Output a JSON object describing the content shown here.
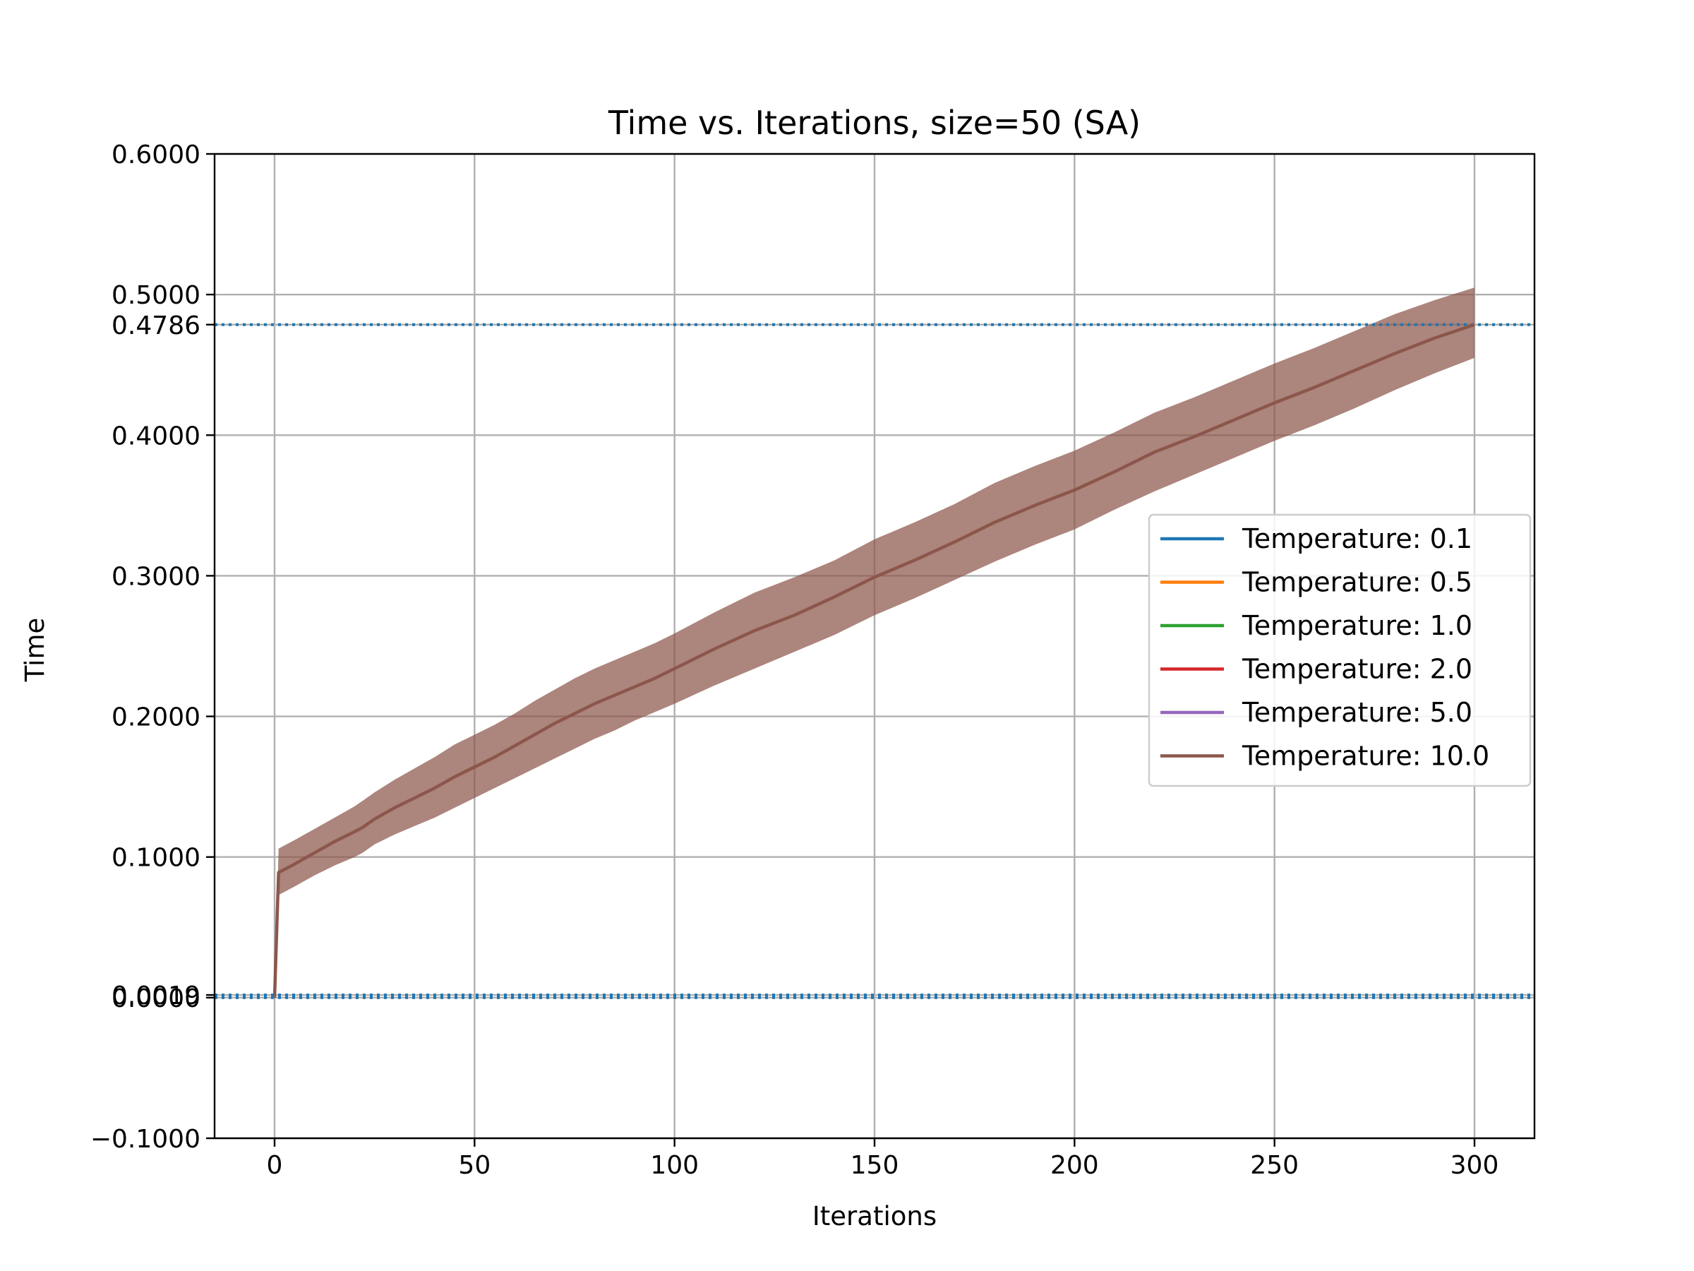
{
  "chart_data": {
    "type": "line",
    "title": "Time vs. Iterations, size=50 (SA)",
    "xlabel": "Iterations",
    "ylabel": "Time",
    "xlim": [
      -15,
      315
    ],
    "ylim": [
      -0.1,
      0.6
    ],
    "x_ticks": [
      0,
      50,
      100,
      150,
      200,
      250,
      300
    ],
    "x_tick_labels": [
      "0",
      "50",
      "100",
      "150",
      "200",
      "250",
      "300"
    ],
    "y_ticks": [
      -0.1,
      0.0,
      0.0019,
      0.1,
      0.2,
      0.3,
      0.4,
      0.4786,
      0.5,
      0.6
    ],
    "y_tick_labels": [
      "−0.1000",
      "0.0000",
      "0.0019",
      "0.1000",
      "0.2000",
      "0.3000",
      "0.4000",
      "0.4786",
      "0.5000",
      "0.6000"
    ],
    "grid": true,
    "legend_position": "center-right",
    "reference_lines": [
      {
        "y": 0.4786,
        "style": "dotted",
        "color": "#1f77b4"
      },
      {
        "y": 0.0019,
        "style": "dotted",
        "color": "#1f77b4"
      },
      {
        "y": 0.0,
        "style": "dotted",
        "color": "#1f77b4"
      }
    ],
    "series": [
      {
        "name": "Temperature: 0.1",
        "color": "#1f77b4"
      },
      {
        "name": "Temperature: 0.5",
        "color": "#ff7f0e"
      },
      {
        "name": "Temperature: 1.0",
        "color": "#2ca02c"
      },
      {
        "name": "Temperature: 2.0",
        "color": "#d62728"
      },
      {
        "name": "Temperature: 5.0",
        "color": "#9467bd"
      },
      {
        "name": "Temperature: 10.0",
        "color": "#8c564b",
        "x": [
          0,
          1,
          5,
          10,
          15,
          20,
          22,
          25,
          30,
          35,
          40,
          45,
          50,
          55,
          60,
          65,
          70,
          75,
          80,
          85,
          90,
          95,
          100,
          110,
          120,
          130,
          140,
          150,
          160,
          170,
          180,
          190,
          200,
          210,
          220,
          230,
          240,
          250,
          260,
          270,
          280,
          290,
          300
        ],
        "values": [
          0.0,
          0.089,
          0.095,
          0.103,
          0.111,
          0.118,
          0.121,
          0.127,
          0.135,
          0.142,
          0.149,
          0.157,
          0.164,
          0.171,
          0.179,
          0.187,
          0.195,
          0.202,
          0.209,
          0.215,
          0.221,
          0.227,
          0.234,
          0.248,
          0.261,
          0.272,
          0.285,
          0.299,
          0.311,
          0.324,
          0.338,
          0.35,
          0.361,
          0.374,
          0.388,
          0.399,
          0.411,
          0.423,
          0.434,
          0.446,
          0.458,
          0.469,
          0.4786
        ],
        "band_lower": [
          0.0,
          0.073,
          0.079,
          0.087,
          0.094,
          0.1,
          0.103,
          0.109,
          0.116,
          0.122,
          0.128,
          0.135,
          0.142,
          0.149,
          0.156,
          0.163,
          0.17,
          0.177,
          0.184,
          0.19,
          0.197,
          0.203,
          0.209,
          0.222,
          0.234,
          0.246,
          0.258,
          0.272,
          0.284,
          0.297,
          0.31,
          0.322,
          0.333,
          0.347,
          0.36,
          0.372,
          0.384,
          0.396,
          0.407,
          0.419,
          0.432,
          0.444,
          0.455
        ],
        "band_upper": [
          0.0,
          0.106,
          0.112,
          0.12,
          0.128,
          0.136,
          0.14,
          0.146,
          0.155,
          0.163,
          0.171,
          0.18,
          0.187,
          0.194,
          0.202,
          0.211,
          0.219,
          0.227,
          0.234,
          0.24,
          0.246,
          0.252,
          0.259,
          0.274,
          0.288,
          0.299,
          0.311,
          0.326,
          0.338,
          0.351,
          0.366,
          0.378,
          0.389,
          0.402,
          0.416,
          0.427,
          0.439,
          0.451,
          0.462,
          0.474,
          0.486,
          0.496,
          0.505
        ]
      }
    ]
  }
}
